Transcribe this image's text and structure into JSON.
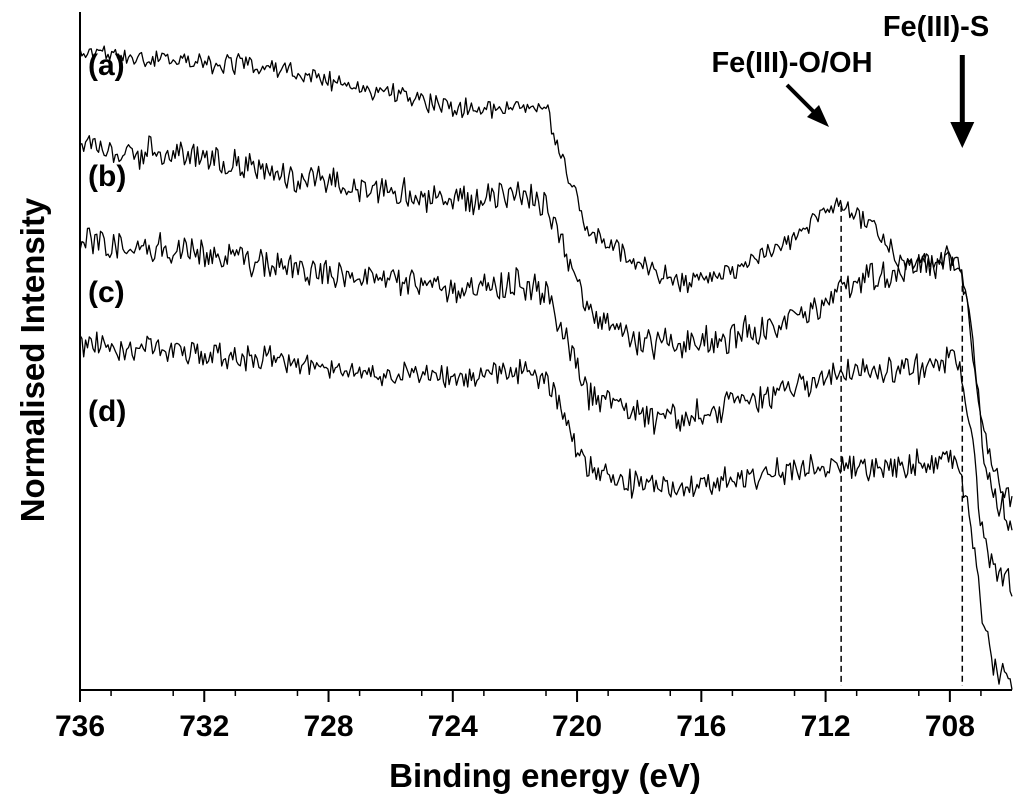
{
  "chart_data": {
    "type": "line",
    "title": "",
    "xlabel": "Binding energy (eV)",
    "ylabel": "Normalised Intensity",
    "xlim": [
      736,
      706
    ],
    "x_reversed": true,
    "x_ticks": [
      736,
      732,
      728,
      724,
      720,
      716,
      712,
      708
    ],
    "y_ticks": [],
    "grid": false,
    "legend": "none",
    "units": "normalised, arbitrary; curves vertically offset",
    "series": [
      {
        "name": "(a)",
        "x": [
          736,
          733,
          730,
          727,
          724,
          722,
          721,
          720.3,
          719.7,
          718,
          716.5,
          715,
          713.5,
          712,
          711.5,
          710.5,
          709.5,
          708.5,
          707.8,
          707.4,
          707.0,
          706.6,
          706.0
        ],
        "y": [
          0.94,
          0.93,
          0.92,
          0.89,
          0.86,
          0.86,
          0.86,
          0.76,
          0.68,
          0.63,
          0.6,
          0.62,
          0.65,
          0.71,
          0.72,
          0.68,
          0.63,
          0.63,
          0.64,
          0.57,
          0.4,
          0.32,
          0.28
        ],
        "noise": 0.012
      },
      {
        "name": "(b)",
        "x": [
          736,
          733,
          730,
          727,
          724,
          722,
          721,
          720.3,
          719.7,
          718,
          716.5,
          715,
          713.5,
          712,
          711.5,
          710.5,
          709.5,
          708.5,
          707.8,
          707.4,
          707.0,
          706.6,
          706.0
        ],
        "y": [
          0.8,
          0.79,
          0.77,
          0.74,
          0.72,
          0.73,
          0.72,
          0.64,
          0.56,
          0.51,
          0.51,
          0.52,
          0.54,
          0.57,
          0.59,
          0.61,
          0.62,
          0.63,
          0.64,
          0.56,
          0.38,
          0.29,
          0.25
        ],
        "noise": 0.018
      },
      {
        "name": "(c)",
        "x": [
          736,
          733,
          730,
          727,
          724,
          722,
          721,
          720.3,
          719.7,
          718,
          716.5,
          715,
          713.5,
          712,
          711.5,
          710.5,
          709.5,
          708.5,
          707.8,
          707.4,
          707.0,
          706.6,
          706.0
        ],
        "y": [
          0.66,
          0.65,
          0.63,
          0.61,
          0.59,
          0.6,
          0.59,
          0.51,
          0.44,
          0.4,
          0.4,
          0.42,
          0.44,
          0.46,
          0.47,
          0.47,
          0.47,
          0.48,
          0.5,
          0.41,
          0.25,
          0.18,
          0.15
        ],
        "noise": 0.018
      },
      {
        "name": "(d)",
        "x": [
          736,
          733,
          730,
          727,
          724,
          722,
          721,
          720.3,
          719.7,
          718,
          716.5,
          715,
          713.5,
          712,
          711.5,
          710.5,
          709.5,
          708.5,
          707.8,
          707.4,
          707.0,
          706.6,
          706.0
        ],
        "y": [
          0.51,
          0.5,
          0.49,
          0.47,
          0.46,
          0.47,
          0.46,
          0.39,
          0.33,
          0.3,
          0.3,
          0.31,
          0.32,
          0.33,
          0.33,
          0.33,
          0.33,
          0.34,
          0.35,
          0.27,
          0.12,
          0.04,
          0.01
        ],
        "noise": 0.016
      }
    ],
    "annotations": [
      {
        "text": "Fe(III)-O/OH",
        "x": 711.5,
        "marker": "dashed vertical line with arrow"
      },
      {
        "text": "Fe(III)-S",
        "x": 707.6,
        "marker": "dashed vertical line with arrow"
      }
    ]
  }
}
